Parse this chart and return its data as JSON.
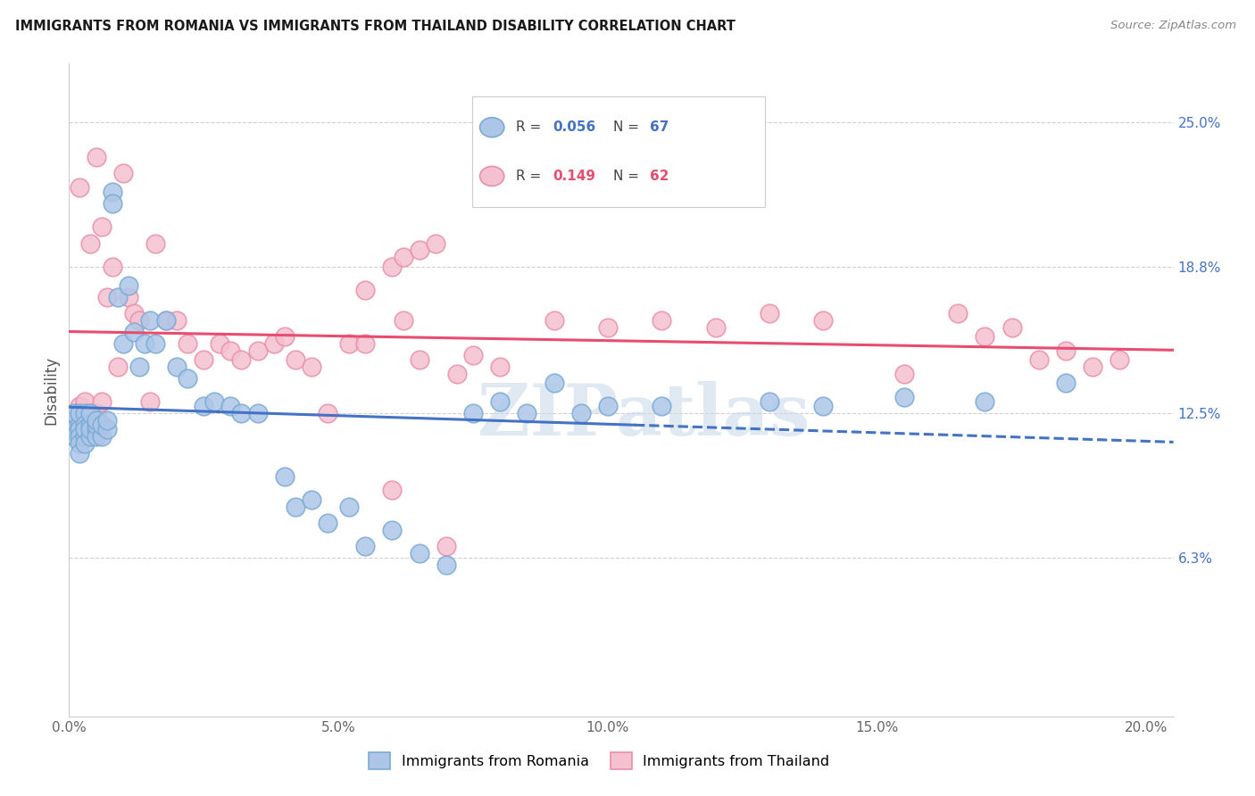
{
  "title": "IMMIGRANTS FROM ROMANIA VS IMMIGRANTS FROM THAILAND DISABILITY CORRELATION CHART",
  "source": "Source: ZipAtlas.com",
  "ylabel": "Disability",
  "xlim": [
    0.0,
    0.205
  ],
  "ylim": [
    -0.005,
    0.275
  ],
  "xtick_labels": [
    "0.0%",
    "",
    "5.0%",
    "",
    "10.0%",
    "",
    "15.0%",
    "",
    "20.0%"
  ],
  "xtick_vals": [
    0.0,
    0.025,
    0.05,
    0.075,
    0.1,
    0.125,
    0.15,
    0.175,
    0.2
  ],
  "ytick_labels_right": [
    "6.3%",
    "12.5%",
    "18.8%",
    "25.0%"
  ],
  "ytick_vals_right": [
    0.063,
    0.125,
    0.188,
    0.25
  ],
  "romania_color": "#adc6e8",
  "thailand_color": "#f5c0d0",
  "romania_edge": "#7aaad4",
  "thailand_edge": "#e890aa",
  "romania_line_color": "#4472c4",
  "thailand_line_color": "#e84c6e",
  "legend_R_romania": "0.056",
  "legend_N_romania": "67",
  "legend_R_thailand": "0.149",
  "legend_N_thailand": "62",
  "watermark": "ZIPatlas",
  "romania_x": [
    0.001,
    0.001,
    0.001,
    0.001,
    0.001,
    0.002,
    0.002,
    0.002,
    0.002,
    0.002,
    0.002,
    0.003,
    0.003,
    0.003,
    0.003,
    0.003,
    0.004,
    0.004,
    0.004,
    0.004,
    0.005,
    0.005,
    0.005,
    0.005,
    0.006,
    0.006,
    0.007,
    0.007,
    0.008,
    0.008,
    0.009,
    0.01,
    0.011,
    0.012,
    0.013,
    0.014,
    0.015,
    0.016,
    0.018,
    0.02,
    0.022,
    0.025,
    0.027,
    0.03,
    0.032,
    0.035,
    0.04,
    0.042,
    0.045,
    0.048,
    0.052,
    0.055,
    0.06,
    0.065,
    0.07,
    0.075,
    0.08,
    0.085,
    0.09,
    0.095,
    0.1,
    0.11,
    0.13,
    0.14,
    0.155,
    0.17,
    0.185
  ],
  "romania_y": [
    0.12,
    0.122,
    0.118,
    0.115,
    0.125,
    0.12,
    0.125,
    0.118,
    0.115,
    0.112,
    0.108,
    0.125,
    0.12,
    0.115,
    0.118,
    0.112,
    0.115,
    0.12,
    0.118,
    0.125,
    0.118,
    0.115,
    0.12,
    0.122,
    0.115,
    0.12,
    0.118,
    0.122,
    0.22,
    0.215,
    0.175,
    0.155,
    0.18,
    0.16,
    0.145,
    0.155,
    0.165,
    0.155,
    0.165,
    0.145,
    0.14,
    0.128,
    0.13,
    0.128,
    0.125,
    0.125,
    0.098,
    0.085,
    0.088,
    0.078,
    0.085,
    0.068,
    0.075,
    0.065,
    0.06,
    0.125,
    0.13,
    0.125,
    0.138,
    0.125,
    0.128,
    0.128,
    0.13,
    0.128,
    0.132,
    0.13,
    0.138
  ],
  "thailand_x": [
    0.001,
    0.002,
    0.002,
    0.003,
    0.003,
    0.004,
    0.004,
    0.005,
    0.005,
    0.005,
    0.006,
    0.006,
    0.007,
    0.008,
    0.009,
    0.01,
    0.011,
    0.012,
    0.013,
    0.015,
    0.016,
    0.018,
    0.02,
    0.022,
    0.025,
    0.028,
    0.03,
    0.032,
    0.035,
    0.038,
    0.04,
    0.042,
    0.045,
    0.048,
    0.052,
    0.055,
    0.06,
    0.062,
    0.065,
    0.07,
    0.075,
    0.08,
    0.09,
    0.1,
    0.11,
    0.12,
    0.13,
    0.14,
    0.155,
    0.165,
    0.17,
    0.175,
    0.18,
    0.185,
    0.19,
    0.195,
    0.055,
    0.06,
    0.062,
    0.065,
    0.068,
    0.072
  ],
  "thailand_y": [
    0.125,
    0.128,
    0.222,
    0.122,
    0.13,
    0.198,
    0.125,
    0.118,
    0.125,
    0.235,
    0.13,
    0.205,
    0.175,
    0.188,
    0.145,
    0.228,
    0.175,
    0.168,
    0.165,
    0.13,
    0.198,
    0.165,
    0.165,
    0.155,
    0.148,
    0.155,
    0.152,
    0.148,
    0.152,
    0.155,
    0.158,
    0.148,
    0.145,
    0.125,
    0.155,
    0.155,
    0.092,
    0.165,
    0.148,
    0.068,
    0.15,
    0.145,
    0.165,
    0.162,
    0.165,
    0.162,
    0.168,
    0.165,
    0.142,
    0.168,
    0.158,
    0.162,
    0.148,
    0.152,
    0.145,
    0.148,
    0.178,
    0.188,
    0.192,
    0.195,
    0.198,
    0.142
  ]
}
